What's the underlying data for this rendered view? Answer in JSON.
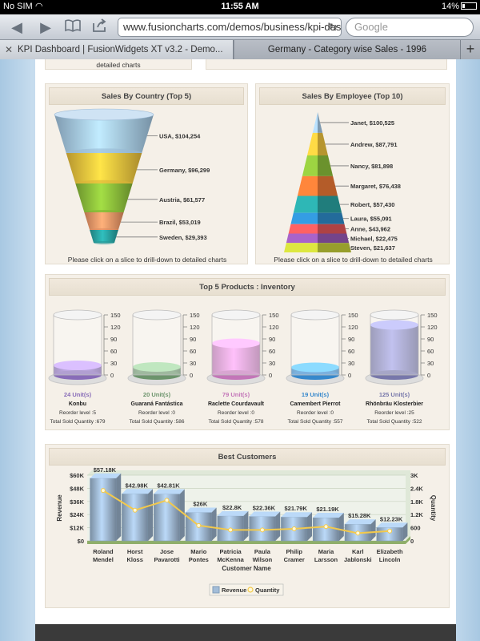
{
  "status_bar": {
    "carrier": "No SIM",
    "time": "11:55 AM",
    "battery": "14%"
  },
  "browser": {
    "url": "www.fusioncharts.com/demos/business/kpi-dash",
    "search_placeholder": "Google",
    "tabs": [
      {
        "label": "KPI Dashboard | FusionWidgets XT v3.2 - Demo..."
      },
      {
        "label": "Germany - Category wise Sales - 1996"
      }
    ]
  },
  "fragment": {
    "text": "detailed charts"
  },
  "panels": {
    "country": {
      "title": "Sales By Country (Top 5)",
      "note": "Please click on a slice to drill-down to detailed charts"
    },
    "employee": {
      "title": "Sales By Employee (Top 10)",
      "note": "Please click on a slice to drill-down to detailed charts"
    },
    "products": {
      "title": "Top 5 Products : Inventory"
    },
    "customers": {
      "title": "Best Customers"
    }
  },
  "chart_data": [
    {
      "type": "funnel",
      "title": "Sales By Country (Top 5)",
      "categories": [
        "USA",
        "Germany",
        "Austria",
        "Brazil",
        "Sweden"
      ],
      "values": [
        104254,
        96299,
        61577,
        53019,
        29393
      ],
      "labels": [
        "USA, $104,254",
        "Germany, $96,299",
        "Austria, $61,577",
        "Brazil, $53,019",
        "Sweden, $29,393"
      ],
      "colors": [
        "#a9cdea",
        "#f3c73f",
        "#8fc23c",
        "#f59a6a",
        "#2aa6a5"
      ]
    },
    {
      "type": "pyramid",
      "title": "Sales By Employee (Top 10)",
      "categories": [
        "Janet",
        "Andrew",
        "Nancy",
        "Margaret",
        "Robert",
        "Laura",
        "Anne",
        "Michael",
        "Steven"
      ],
      "values": [
        100525,
        87791,
        81898,
        76438,
        57430,
        55091,
        43962,
        22475,
        21637
      ],
      "labels": [
        "Janet, $100,525",
        "Andrew, $87,791",
        "Nancy, $81,898",
        "Margaret, $76,438",
        "Robert, $57,430",
        "Laura, $55,091",
        "Anne, $43,962",
        "Michael, $22,475",
        "Steven, $21,637"
      ],
      "colors": [
        "#a9cdea",
        "#f3c73f",
        "#8fc23c",
        "#f07a36",
        "#2aa6a5",
        "#2f8fcf",
        "#e8585a",
        "#9a5ab8",
        "#c9d23a"
      ]
    },
    {
      "type": "cylinder-gauges",
      "title": "Top 5 Products : Inventory",
      "scale": {
        "min": 0,
        "max": 150,
        "ticks": [
          "150",
          "120",
          "90",
          "60",
          "30",
          "0"
        ]
      },
      "items": [
        {
          "name": "Konbu",
          "value": 24,
          "value_label": "24 Unit(s)",
          "color": "#a07fd8",
          "reorder": "Reorder level :5",
          "sold": "Total Sold Quantity :679"
        },
        {
          "name": "Guaraná Fantástica",
          "value": 20,
          "value_label": "20 Unit(s)",
          "color": "#7fae7f",
          "reorder": "Reorder level :0",
          "sold": "Total Sold Quantity :586"
        },
        {
          "name": "Raclette Courdavault",
          "value": 79,
          "value_label": "79 Unit(s)",
          "color": "#e58ad8",
          "reorder": "Reorder level :0",
          "sold": "Total Sold Quantity :578"
        },
        {
          "name": "Camembert Pierrot",
          "value": 19,
          "value_label": "19 Unit(s)",
          "color": "#3fa0f0",
          "reorder": "Reorder level :0",
          "sold": "Total Sold Quantity :557"
        },
        {
          "name": "Rhönbräu Klosterbier",
          "value": 125,
          "value_label": "125 Unit(s)",
          "color": "#8c8cc8",
          "reorder": "Reorder level :25",
          "sold": "Total Sold Quantity :522"
        }
      ]
    },
    {
      "type": "bar-line-dual-axis",
      "title": "Best Customers",
      "xlabel": "Customer Name",
      "ylabel": "Revenue",
      "y2label": "Quantity",
      "categories": [
        "Roland Mendel",
        "Horst Kloss",
        "Jose Pavarotti",
        "Mario Pontes",
        "Patricia McKenna",
        "Paula Wilson",
        "Philip Cramer",
        "Maria Larsson",
        "Karl Jablonski",
        "Elizabeth Lincoln"
      ],
      "category_lines": [
        [
          "Roland",
          "Mendel"
        ],
        [
          "Horst",
          "Kloss"
        ],
        [
          "Jose",
          "Pavarotti"
        ],
        [
          "Mario",
          "Pontes"
        ],
        [
          "Patricia",
          "McKenna"
        ],
        [
          "Paula",
          "Wilson"
        ],
        [
          "Philip",
          "Cramer"
        ],
        [
          "Maria",
          "Larsson"
        ],
        [
          "Karl",
          "Jablonski"
        ],
        [
          "Elizabeth",
          "Lincoln"
        ]
      ],
      "series": [
        {
          "name": "Revenue",
          "type": "bar",
          "values": [
            57180,
            42980,
            42810,
            26000,
            22800,
            22360,
            21790,
            21190,
            15280,
            12230
          ],
          "value_labels": [
            "$57.18K",
            "$42.98K",
            "$42.81K",
            "$26K",
            "$22.8K",
            "$22.36K",
            "$21.79K",
            "$21.19K",
            "$15.28K",
            "$12.23K"
          ],
          "color": "#a3bdd8"
        },
        {
          "name": "Quantity",
          "type": "line",
          "values": [
            2300,
            1400,
            1850,
            700,
            500,
            500,
            550,
            650,
            350,
            450
          ],
          "color": "#f2c94c"
        }
      ],
      "ylim": [
        0,
        60000
      ],
      "yticks": [
        "$0",
        "$12K",
        "$24K",
        "$36K",
        "$48K",
        "$60K"
      ],
      "y2lim": [
        0,
        3000
      ],
      "y2ticks": [
        "0",
        "600",
        "1.2K",
        "1.8K",
        "2.4K",
        "3K"
      ],
      "legend": [
        "Revenue",
        "Quantity"
      ]
    }
  ]
}
